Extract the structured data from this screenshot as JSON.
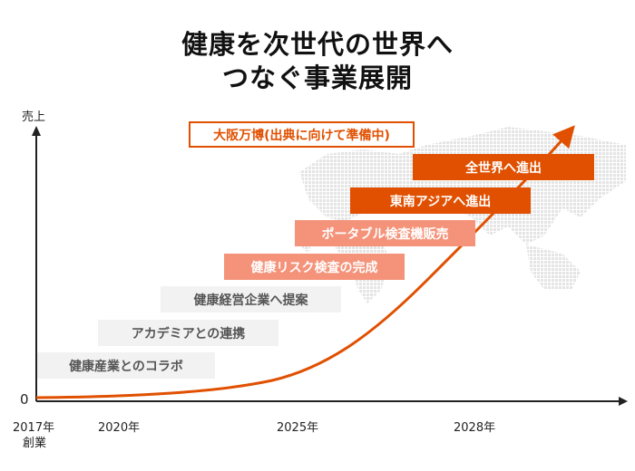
{
  "title": {
    "line1": "健康を次世代の世界へ",
    "line2": "つなぐ事業展開"
  },
  "axis": {
    "y_label": "売上",
    "zero": "0",
    "x_ticks": [
      {
        "year": "2017年",
        "sub": "創業"
      },
      {
        "year": "2020年"
      },
      {
        "year": "2025年"
      },
      {
        "year": "2028年"
      }
    ]
  },
  "milestones": [
    "大阪万博(出典に向けて準備中)",
    "全世界へ進出",
    "東南アジアへ進出",
    "ポータブル検査機販売",
    "健康リスク検査の完成",
    "健康経営企業へ提案",
    "アカデミアとの連携",
    "健康産業とのコラボ"
  ],
  "colors": {
    "accent": "#e05000",
    "mid": "#f4937a",
    "light": "#f2f2f2"
  }
}
